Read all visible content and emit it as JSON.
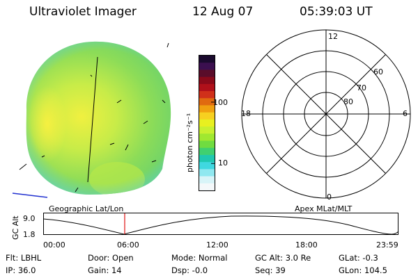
{
  "header": {
    "instrument": "Ultraviolet Imager",
    "date": "12 Aug 07",
    "time": "05:39:03 UT"
  },
  "colorbar": {
    "unit_label": "photon cm⁻²s⁻¹",
    "ticks": [
      "100",
      "10"
    ],
    "colors": [
      "#1a0a2e",
      "#3b0f4f",
      "#5a0d2a",
      "#8a0a1a",
      "#b0101a",
      "#d0301a",
      "#e06a10",
      "#f0a010",
      "#f7d020",
      "#e8f020",
      "#c8f030",
      "#a0e830",
      "#70dc40",
      "#40d070",
      "#20c8b0",
      "#40d8e0",
      "#90e8f0",
      "#d8f4f8",
      "#f4f8fa"
    ]
  },
  "polar_plot": {
    "hour_labels": {
      "top": "12",
      "right": "6",
      "left": "18",
      "bottom": "0"
    },
    "lat_labels": [
      "60",
      "70",
      "80"
    ]
  },
  "timeline": {
    "left_label": "Geographic Lat/Lon",
    "right_label": "Apex MLat/MLT",
    "y_axis_label": "GC Alt",
    "y_ticks": [
      "9.0",
      "1.8"
    ],
    "x_ticks": [
      "00:00",
      "06:00",
      "12:00",
      "18:00",
      "23:59"
    ],
    "current_marker_color": "#e01010"
  },
  "info": {
    "row1": {
      "flt": "Flt: LBHL",
      "door": "Door: Open",
      "mode": "Mode: Normal",
      "gcalt": "GC Alt: 3.0 Re",
      "glat": "GLat:  -0.3"
    },
    "row2": {
      "ip": "IP: 36.0",
      "gain": "Gain: 14",
      "dsp": "Dsp:   -0.0",
      "seq": "Seq: 39",
      "glon": "GLon: 104.5"
    }
  }
}
